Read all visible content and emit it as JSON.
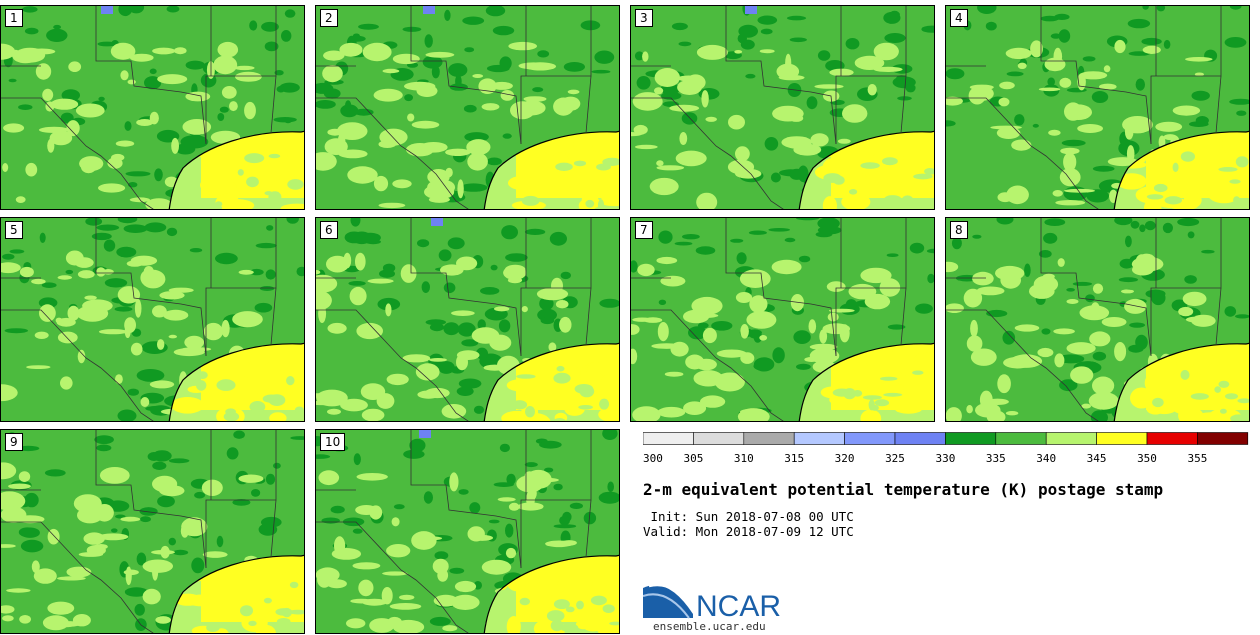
{
  "figure": {
    "title": "2-m equivalent potential temperature (K) postage stamp",
    "init": " Init: Sun 2018-07-08 00 UTC",
    "valid": "Valid: Mon 2018-07-09 12 UTC",
    "logo_text": "NCAR",
    "logo_url": "ensemble.ucar.edu"
  },
  "members": [
    "1",
    "2",
    "3",
    "4",
    "5",
    "6",
    "7",
    "8",
    "9",
    "10"
  ],
  "colorbar": {
    "ticks": [
      "300",
      "305",
      "310",
      "315",
      "320",
      "325",
      "330",
      "335",
      "340",
      "345",
      "350",
      "355"
    ],
    "colors": [
      "#efefef",
      "#dcdcdc",
      "#aaaaaa",
      "#b4c8ff",
      "#8298fb",
      "#6e82f3",
      "#109a22",
      "#4cbb3e",
      "#b7f46e",
      "#ffff22",
      "#e60000",
      "#820000"
    ]
  },
  "palette": {
    "land_mid": "#4cbb3e",
    "land_dark": "#109a22",
    "land_light": "#b7f46e",
    "gulf_yellow": "#ffff22",
    "gulf_light": "#b7f46e",
    "cool_blue": "#6e82f3",
    "border": "#333333"
  }
}
